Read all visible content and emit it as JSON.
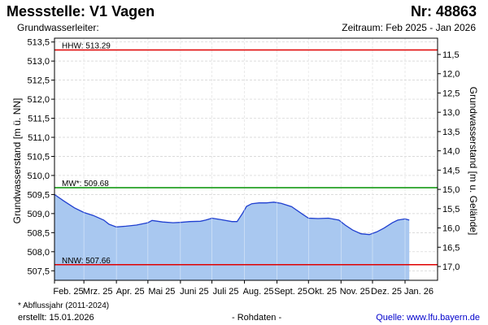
{
  "header": {
    "title": "Messstelle: V1 Vagen",
    "nr": "Nr: 48863",
    "subtitle": "Grundwasserleiter:",
    "period": "Zeitraum: Feb 2025 - Jan 2026"
  },
  "footer": {
    "footnote": "* Abflussjahr (2011-2024)",
    "created": "erstellt:  15.01.2026",
    "raw": "- Rohdaten -",
    "source": "Quelle: www.lfu.bayern.de"
  },
  "colors": {
    "fill": "#a9c8f0",
    "line": "#1f3fd0",
    "hhw": "#e00000",
    "nnw": "#e00000",
    "mw": "#009000",
    "grid": "#d0d0d0"
  },
  "chart_data": {
    "type": "area",
    "ylabel": "Grundwasserstand [m ü. NN]",
    "y2label": "Grundwasserstand [m u. Gelände]",
    "ylim": [
      507.25,
      513.6
    ],
    "y_ticks": [
      507.5,
      508.0,
      508.5,
      509.0,
      509.5,
      510.0,
      510.5,
      511.0,
      511.5,
      512.0,
      512.5,
      513.0,
      513.5
    ],
    "y_tick_labels": [
      "507,5",
      "508,0",
      "508,5",
      "509,0",
      "509,5",
      "510,0",
      "510,5",
      "511,0",
      "511,5",
      "512,0",
      "512,5",
      "513,0",
      "513,5"
    ],
    "y2_ticks": [
      11.5,
      12.0,
      12.5,
      13.0,
      13.5,
      14.0,
      14.5,
      15.0,
      15.5,
      16.0,
      16.5,
      17.0
    ],
    "y2_tick_labels": [
      "11,5",
      "12,0",
      "12,5",
      "13,0",
      "13,5",
      "14,0",
      "14,5",
      "15,0",
      "15,5",
      "16,0",
      "16,5",
      "17,0"
    ],
    "x_range": [
      "2025-02-01",
      "2026-02-01"
    ],
    "x_ticks": [
      "2025-02-01",
      "2025-03-01",
      "2025-04-01",
      "2025-05-01",
      "2025-06-01",
      "2025-07-01",
      "2025-08-01",
      "2025-09-01",
      "2025-10-01",
      "2025-11-01",
      "2025-12-01",
      "2026-01-01"
    ],
    "x_tick_labels": [
      "Feb. 25",
      "Mrz. 25",
      "Apr. 25",
      "Mai 25",
      "Juni 25",
      "Juli 25",
      "Aug. 25",
      "Sept. 25",
      "Okt. 25",
      "Nov. 25",
      "Dez. 25",
      "Jan. 26"
    ],
    "grid": true,
    "reference_lines": [
      {
        "key": "hhw",
        "label": "HHW: 513.29",
        "value": 513.29
      },
      {
        "key": "mw",
        "label": "MW*: 509.68",
        "value": 509.68
      },
      {
        "key": "nnw",
        "label": "NNW: 507.66",
        "value": 507.66
      }
    ],
    "series": [
      {
        "dates": [
          "2025-02-01",
          "2025-02-10",
          "2025-02-20",
          "2025-03-01",
          "2025-03-10",
          "2025-03-20",
          "2025-03-25",
          "2025-04-01",
          "2025-04-10",
          "2025-04-20",
          "2025-05-01",
          "2025-05-05",
          "2025-05-15",
          "2025-05-25",
          "2025-06-01",
          "2025-06-10",
          "2025-06-20",
          "2025-06-25",
          "2025-07-01",
          "2025-07-10",
          "2025-07-20",
          "2025-07-25",
          "2025-07-30",
          "2025-08-03",
          "2025-08-08",
          "2025-08-15",
          "2025-08-22",
          "2025-08-29",
          "2025-09-05",
          "2025-09-15",
          "2025-09-25",
          "2025-10-01",
          "2025-10-10",
          "2025-10-20",
          "2025-10-30",
          "2025-11-05",
          "2025-11-12",
          "2025-11-20",
          "2025-11-28",
          "2025-12-05",
          "2025-12-12",
          "2025-12-20",
          "2025-12-25",
          "2026-01-01",
          "2026-01-05"
        ],
        "values": [
          509.5,
          509.33,
          509.15,
          509.03,
          508.95,
          508.83,
          508.72,
          508.65,
          508.67,
          508.7,
          508.76,
          508.82,
          508.78,
          508.76,
          508.77,
          508.79,
          508.8,
          508.83,
          508.88,
          508.84,
          508.79,
          508.79,
          509.0,
          509.19,
          509.26,
          509.28,
          509.28,
          509.3,
          509.27,
          509.18,
          508.99,
          508.88,
          508.87,
          508.88,
          508.83,
          508.7,
          508.57,
          508.47,
          508.45,
          508.52,
          508.62,
          508.76,
          508.83,
          508.86,
          508.83
        ]
      }
    ]
  }
}
